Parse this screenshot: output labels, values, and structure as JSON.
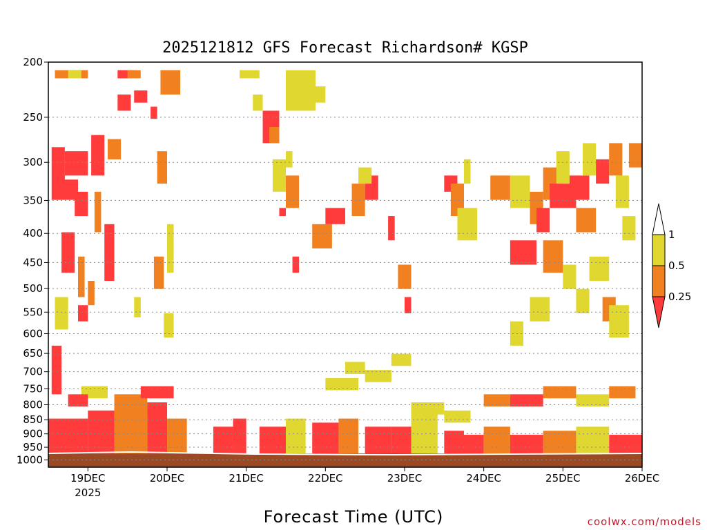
{
  "chart_data": {
    "type": "heatmap",
    "title": "2025121812 GFS Forecast Richardson# KGSP",
    "xlabel": "Forecast Time (UTC)",
    "ylabel": "",
    "credit": "coolwx.com/models",
    "y_scale": "log",
    "y_reversed": true,
    "y_ticks": [
      200,
      250,
      300,
      350,
      400,
      450,
      500,
      550,
      600,
      650,
      700,
      750,
      800,
      850,
      900,
      950,
      1000
    ],
    "ylim": [
      200,
      1030
    ],
    "x_ticks": [
      {
        "h": 12,
        "label": "19DEC",
        "sub": "2025"
      },
      {
        "h": 36,
        "label": "20DEC",
        "sub": ""
      },
      {
        "h": 60,
        "label": "21DEC",
        "sub": ""
      },
      {
        "h": 84,
        "label": "22DEC",
        "sub": ""
      },
      {
        "h": 108,
        "label": "23DEC",
        "sub": ""
      },
      {
        "h": 132,
        "label": "24DEC",
        "sub": ""
      },
      {
        "h": 156,
        "label": "25DEC",
        "sub": ""
      },
      {
        "h": 180,
        "label": "26DEC",
        "sub": ""
      }
    ],
    "xlim_hours_since_init": [
      0,
      180
    ],
    "grid": true,
    "colors": {
      "lt025": "#ff3b3b",
      "025_05": "#f08020",
      "05_1": "#e0d830",
      "ground": "#9c4a24",
      "grid": "#888888"
    },
    "legend": {
      "placement": "right",
      "levels": [
        "1",
        "0.5",
        "0.25"
      ]
    },
    "cells": [
      [
        2,
        12,
        2,
        4,
        "o"
      ],
      [
        6,
        10,
        2,
        4,
        "y"
      ],
      [
        5,
        12,
        22,
        28,
        "r"
      ],
      [
        2,
        9,
        29,
        34,
        "r"
      ],
      [
        1,
        5,
        21,
        34,
        "r"
      ],
      [
        8,
        12,
        32,
        38,
        "r"
      ],
      [
        4,
        8,
        42,
        52,
        "r"
      ],
      [
        9,
        11,
        48,
        58,
        "o"
      ],
      [
        2,
        6,
        58,
        66,
        "y"
      ],
      [
        1,
        4,
        70,
        82,
        "r"
      ],
      [
        21,
        26,
        2,
        4,
        "r"
      ],
      [
        21,
        25,
        8,
        12,
        "r"
      ],
      [
        18,
        22,
        19,
        24,
        "o"
      ],
      [
        24,
        28,
        2,
        4,
        "o"
      ],
      [
        26,
        30,
        7,
        10,
        "r"
      ],
      [
        13,
        17,
        18,
        28,
        "r"
      ],
      [
        14,
        16,
        32,
        42,
        "o"
      ],
      [
        17,
        20,
        40,
        54,
        "r"
      ],
      [
        12,
        14,
        54,
        60,
        "o"
      ],
      [
        9,
        12,
        60,
        64,
        "r"
      ],
      [
        34,
        40,
        2,
        8,
        "o"
      ],
      [
        31,
        33,
        11,
        14,
        "r"
      ],
      [
        33,
        36,
        22,
        30,
        "o"
      ],
      [
        36,
        38,
        40,
        52,
        "y"
      ],
      [
        32,
        35,
        48,
        56,
        "o"
      ],
      [
        26,
        28,
        58,
        63,
        "y"
      ],
      [
        35,
        38,
        62,
        68,
        "y"
      ],
      [
        58,
        64,
        2,
        4,
        "y"
      ],
      [
        62,
        65,
        8,
        12,
        "y"
      ],
      [
        65,
        70,
        12,
        20,
        "r"
      ],
      [
        67,
        70,
        16,
        20,
        "o"
      ],
      [
        68,
        72,
        24,
        32,
        "y"
      ],
      [
        72,
        74,
        22,
        26,
        "y"
      ],
      [
        70,
        72,
        36,
        38,
        "r"
      ],
      [
        72,
        81,
        2,
        12,
        "y"
      ],
      [
        78,
        84,
        6,
        10,
        "y"
      ],
      [
        72,
        76,
        28,
        36,
        "o"
      ],
      [
        74,
        76,
        48,
        52,
        "r"
      ],
      [
        84,
        90,
        36,
        40,
        "r"
      ],
      [
        80,
        86,
        40,
        46,
        "o"
      ],
      [
        92,
        96,
        30,
        38,
        "o"
      ],
      [
        96,
        100,
        28,
        34,
        "r"
      ],
      [
        94,
        98,
        26,
        30,
        "y"
      ],
      [
        103,
        105,
        38,
        44,
        "r"
      ],
      [
        106,
        110,
        50,
        56,
        "o"
      ],
      [
        108,
        110,
        58,
        62,
        "r"
      ],
      [
        120,
        124,
        28,
        32,
        "r"
      ],
      [
        122,
        126,
        30,
        38,
        "o"
      ],
      [
        124,
        130,
        36,
        44,
        "y"
      ],
      [
        126,
        128,
        24,
        30,
        "y"
      ],
      [
        134,
        140,
        28,
        34,
        "o"
      ],
      [
        140,
        146,
        28,
        36,
        "y"
      ],
      [
        146,
        150,
        32,
        40,
        "o"
      ],
      [
        148,
        152,
        36,
        42,
        "r"
      ],
      [
        150,
        156,
        26,
        34,
        "o"
      ],
      [
        152,
        160,
        30,
        36,
        "r"
      ],
      [
        154,
        158,
        22,
        30,
        "y"
      ],
      [
        158,
        164,
        28,
        34,
        "r"
      ],
      [
        160,
        166,
        36,
        42,
        "o"
      ],
      [
        162,
        166,
        20,
        28,
        "y"
      ],
      [
        166,
        170,
        24,
        30,
        "r"
      ],
      [
        170,
        174,
        20,
        28,
        "o"
      ],
      [
        172,
        176,
        28,
        36,
        "y"
      ],
      [
        174,
        178,
        38,
        44,
        "y"
      ],
      [
        176,
        180,
        20,
        26,
        "o"
      ],
      [
        140,
        148,
        44,
        50,
        "r"
      ],
      [
        150,
        156,
        44,
        52,
        "o"
      ],
      [
        156,
        160,
        50,
        56,
        "y"
      ],
      [
        160,
        164,
        56,
        62,
        "y"
      ],
      [
        164,
        170,
        48,
        54,
        "y"
      ],
      [
        168,
        172,
        58,
        64,
        "o"
      ],
      [
        146,
        152,
        58,
        64,
        "y"
      ],
      [
        140,
        144,
        64,
        70,
        "y"
      ],
      [
        170,
        176,
        60,
        68,
        "y"
      ]
    ],
    "low_level": [
      [
        0,
        12,
        "r",
        88
      ],
      [
        12,
        20,
        "r",
        86
      ],
      [
        20,
        30,
        "o",
        82
      ],
      [
        30,
        36,
        "r",
        84
      ],
      [
        36,
        42,
        "o",
        88
      ],
      [
        50,
        56,
        "r",
        90
      ],
      [
        56,
        60,
        "r",
        88
      ],
      [
        64,
        72,
        "r",
        90
      ],
      [
        72,
        78,
        "y",
        88
      ],
      [
        80,
        88,
        "r",
        89
      ],
      [
        88,
        94,
        "o",
        88
      ],
      [
        96,
        104,
        "r",
        90
      ],
      [
        104,
        110,
        "r",
        90
      ],
      [
        110,
        118,
        "y",
        86
      ],
      [
        120,
        126,
        "r",
        91
      ],
      [
        126,
        132,
        "r",
        92
      ],
      [
        132,
        140,
        "o",
        90
      ],
      [
        140,
        150,
        "r",
        92
      ],
      [
        150,
        160,
        "o",
        91
      ],
      [
        160,
        170,
        "y",
        90
      ],
      [
        170,
        180,
        "r",
        92
      ]
    ],
    "mid_level": [
      [
        84,
        94,
        "y",
        78
      ],
      [
        90,
        96,
        "y",
        74
      ],
      [
        96,
        104,
        "y",
        76
      ],
      [
        104,
        110,
        "y",
        72
      ],
      [
        28,
        38,
        "r",
        80
      ],
      [
        20,
        30,
        "o",
        84
      ],
      [
        10,
        18,
        "y",
        80
      ],
      [
        6,
        12,
        "r",
        82
      ],
      [
        132,
        140,
        "o",
        82
      ],
      [
        140,
        150,
        "r",
        82
      ],
      [
        150,
        160,
        "o",
        80
      ],
      [
        160,
        170,
        "y",
        82
      ],
      [
        170,
        178,
        "o",
        80
      ],
      [
        110,
        120,
        "y",
        84
      ],
      [
        120,
        128,
        "y",
        86
      ]
    ]
  }
}
